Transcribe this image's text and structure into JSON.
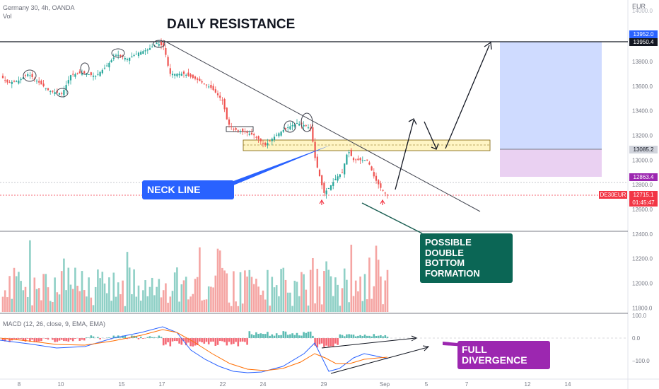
{
  "header": {
    "symbol": "Germany 30, 4h, OANDA",
    "vol": "Vol",
    "currency": "EUR"
  },
  "annotations": {
    "daily_resistance": "DAILY RESISTANCE",
    "neck_line": "NECK LINE",
    "double_bottom": [
      "POSSIBLE",
      "DOUBLE",
      "BOTTOM",
      "FORMATION"
    ],
    "full_divergence": [
      "FULL",
      "DIVERGENCE"
    ]
  },
  "macd_label": "MACD (12, 26, close, 9, EMA, EMA)",
  "price_tags": [
    {
      "value": "13952.0",
      "color": "#2962ff"
    },
    {
      "value": "13950.4",
      "color": "#131722"
    },
    {
      "value": "13085.2",
      "color": "#787b86"
    },
    {
      "value": "12863.4",
      "color": "#9c27b0"
    },
    {
      "value": "12715.1",
      "color": "#f23645"
    },
    {
      "value": "01:45:47",
      "color": "#f23645"
    }
  ],
  "symbol_tag": "DE30EUR",
  "chart_data": {
    "type": "candlestick",
    "price_axis": {
      "ticks": [
        13800,
        13600,
        13400,
        13200,
        13000,
        12800,
        12600,
        12400,
        12200,
        12000,
        11800
      ],
      "top_cut_label": "14000.0"
    },
    "macd_axis": {
      "ticks": [
        "100.0",
        "0.0",
        "−100.0"
      ]
    },
    "x_ticks": [
      "8",
      "10",
      "15",
      "17",
      "22",
      "24",
      "29",
      "Sep",
      "5",
      "7",
      "12",
      "14"
    ],
    "levels": {
      "daily_resistance": 13950.4,
      "target": 13952.0,
      "entry": 13085.2,
      "stop": 12863.4,
      "last": 12715.1
    },
    "colors": {
      "up": "#26a69a",
      "down": "#ef5350",
      "macd": "#2962ff",
      "signal": "#ff6d00",
      "zone": "#fff5c4"
    }
  }
}
